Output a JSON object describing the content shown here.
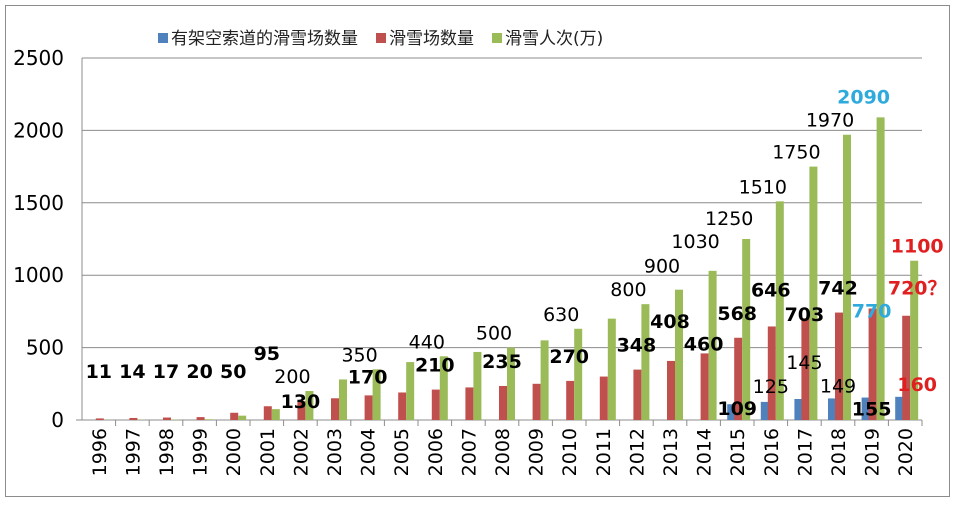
{
  "chart_data": {
    "type": "bar",
    "title": "",
    "xlabel": "",
    "ylabel": "",
    "ylim": [
      0,
      2500
    ],
    "yticks": [
      0,
      500,
      1000,
      1500,
      2000,
      2500
    ],
    "grid": true,
    "legend_position": "top",
    "categories": [
      "1996",
      "1997",
      "1998",
      "1999",
      "2000",
      "2001",
      "2002",
      "2003",
      "2004",
      "2005",
      "2006",
      "2007",
      "2008",
      "2009",
      "2010",
      "2011",
      "2012",
      "2013",
      "2014",
      "2015",
      "2016",
      "2017",
      "2018",
      "2019",
      "2020"
    ],
    "series": [
      {
        "name": "有架空索道的滑雪场数量",
        "color": "#4f81bd",
        "values": [
          null,
          null,
          null,
          null,
          null,
          null,
          null,
          null,
          null,
          null,
          null,
          null,
          null,
          null,
          null,
          null,
          null,
          null,
          null,
          109,
          125,
          145,
          149,
          155,
          160
        ],
        "labels": [
          null,
          null,
          null,
          null,
          null,
          null,
          null,
          null,
          null,
          null,
          null,
          null,
          null,
          null,
          null,
          null,
          null,
          null,
          null,
          "109",
          "125",
          "145",
          "149",
          "155",
          "160"
        ],
        "label_colors": {
          "24": "#e02020"
        },
        "label_bold": [
          19,
          23,
          24
        ]
      },
      {
        "name": "滑雪场数量",
        "color": "#c0504d",
        "values": [
          11,
          14,
          17,
          20,
          50,
          95,
          130,
          150,
          170,
          190,
          210,
          225,
          235,
          250,
          270,
          300,
          348,
          408,
          460,
          568,
          646,
          703,
          742,
          770,
          720
        ],
        "labels": [
          "11",
          "14",
          "17",
          "20",
          "50",
          "95",
          "130",
          null,
          "170",
          null,
          "210",
          null,
          "235",
          null,
          "270",
          null,
          "348",
          "408",
          "460",
          "568",
          "646",
          "703",
          "742",
          "770",
          "720？"
        ],
        "label_colors": {
          "23": "#2eaadc",
          "24": "#e02020"
        },
        "label_bold": "all"
      },
      {
        "name": "滑雪人次(万)",
        "color": "#9bbb59",
        "values": [
          1,
          2,
          3,
          5,
          30,
          75,
          200,
          280,
          350,
          400,
          440,
          470,
          500,
          550,
          630,
          700,
          800,
          900,
          1030,
          1250,
          1510,
          1750,
          1970,
          2090,
          1100
        ],
        "labels": [
          null,
          null,
          null,
          null,
          null,
          null,
          "200",
          null,
          "350",
          null,
          "440",
          null,
          "500",
          null,
          "630",
          null,
          "800",
          "900",
          "1030",
          "1250",
          "1510",
          "1750",
          "1970",
          "2090",
          "1100"
        ],
        "label_colors": {
          "23": "#2eaadc",
          "24": "#e02020"
        },
        "label_bold": [
          23,
          24
        ]
      }
    ]
  }
}
